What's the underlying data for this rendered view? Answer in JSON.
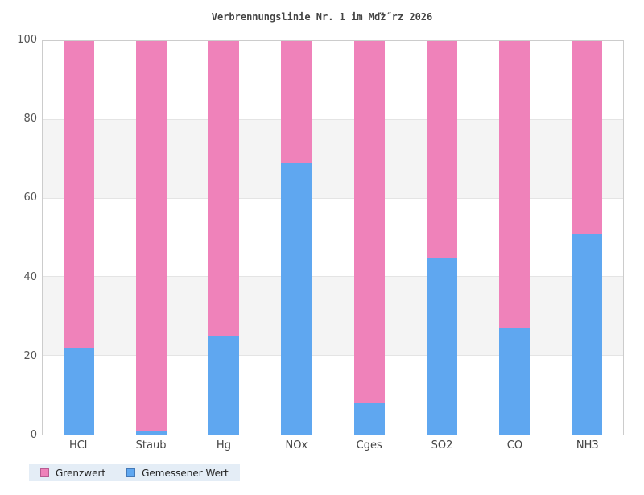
{
  "title": "Verbrennungslinie Nr. 1 im Mďż˝rz 2026",
  "chart_data": {
    "type": "bar",
    "stacked": true,
    "title": "Verbrennungslinie Nr. 1 im Mďż˝rz 2026",
    "categories": [
      "HCl",
      "Staub",
      "Hg",
      "NOx",
      "Cges",
      "SO2",
      "CO",
      "NH3"
    ],
    "series": [
      {
        "name": "Gemessener Wert",
        "color": "#5fa7f0",
        "values": [
          22,
          1,
          25,
          69,
          8,
          45,
          27,
          51
        ]
      },
      {
        "name": "Grenzwert",
        "color": "#ef82ba",
        "values": [
          78,
          99,
          75,
          31,
          92,
          55,
          73,
          49
        ]
      }
    ],
    "xlabel": "",
    "ylabel": "",
    "ylim": [
      0,
      100
    ],
    "yticks": [
      0,
      20,
      40,
      60,
      80,
      100
    ],
    "grid": "alternating-horizontal-bands",
    "legend_position": "bottom-left"
  },
  "legend": {
    "items": [
      {
        "label": "Grenzwert",
        "color": "#ef82ba",
        "border": "#b85c92"
      },
      {
        "label": "Gemessener Wert",
        "color": "#5fa7f0",
        "border": "#4479b8"
      }
    ]
  },
  "colors": {
    "measured_blue": "#5fa7f0",
    "limit_pink": "#ef82ba",
    "band_gray": "#f4f4f4",
    "band_white": "#ffffff",
    "gridline": "#e4e4e4",
    "plot_frame": "#cccccc",
    "legend_background": "#e4edf6",
    "title_text": "#444444",
    "tick_text": "#555555"
  }
}
